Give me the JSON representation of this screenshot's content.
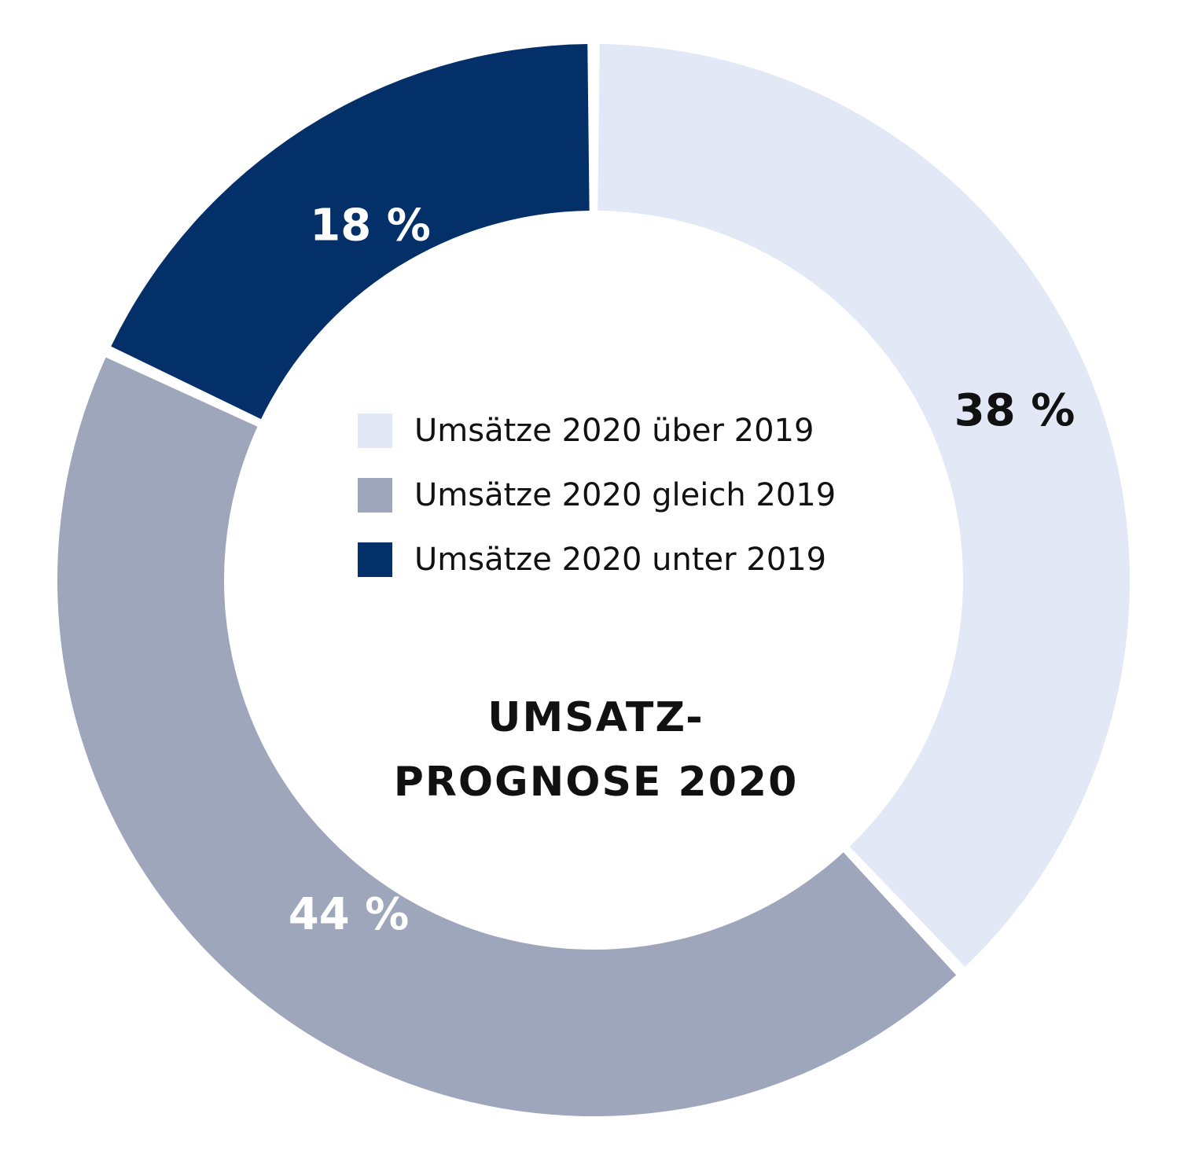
{
  "chart_data": {
    "type": "pie",
    "title": "UMSATZ- PROGNOSE 2020",
    "title_lines": [
      "UMSATZ-",
      "PROGNOSE 2020"
    ],
    "series": [
      {
        "name": "Umsätze",
        "values": [
          {
            "category": "Umsätze 2020 über 2019",
            "value": 38,
            "label": "38 %",
            "color": "#e2e8f6",
            "label_color": "#111111"
          },
          {
            "category": "Umsätze 2020 gleich 2019",
            "value": 44,
            "label": "44 %",
            "color": "#9ea6bc",
            "label_color": "#ffffff"
          },
          {
            "category": "Umsätze 2020 unter 2019",
            "value": 18,
            "label": "18 %",
            "color": "#04306a",
            "label_color": "#ffffff"
          }
        ]
      }
    ],
    "legend": {
      "position": "center",
      "entries": [
        "Umsätze 2020 über 2019",
        "Umsätze 2020 gleich 2019",
        "Umsätze 2020 unter 2019"
      ]
    },
    "donut": true
  }
}
